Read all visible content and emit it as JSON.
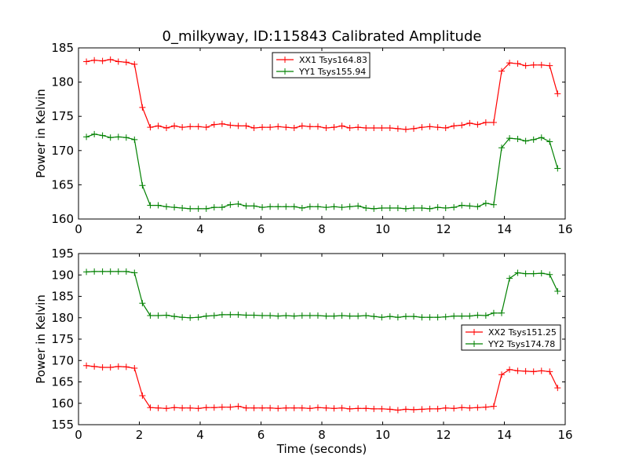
{
  "title": "0_milkyway, ID:115843 Calibrated Amplitude",
  "chart_data": [
    {
      "type": "line",
      "xlabel": "",
      "ylabel": "Power in Kelvin",
      "xlim": [
        0,
        16
      ],
      "ylim": [
        160,
        185
      ],
      "xticks": [
        0,
        2,
        4,
        6,
        8,
        10,
        12,
        14,
        16
      ],
      "yticks": [
        160,
        165,
        170,
        175,
        180,
        185
      ],
      "grid": false,
      "legend_position": "top-center",
      "x": [
        0.26,
        0.52,
        0.79,
        1.05,
        1.31,
        1.57,
        1.84,
        2.1,
        2.36,
        2.62,
        2.89,
        3.15,
        3.41,
        3.67,
        3.94,
        4.2,
        4.46,
        4.72,
        4.99,
        5.25,
        5.51,
        5.77,
        6.04,
        6.3,
        6.56,
        6.82,
        7.09,
        7.35,
        7.61,
        7.87,
        8.14,
        8.4,
        8.66,
        8.92,
        9.19,
        9.45,
        9.71,
        9.97,
        10.24,
        10.5,
        10.76,
        11.02,
        11.29,
        11.55,
        11.81,
        12.07,
        12.34,
        12.6,
        12.86,
        13.12,
        13.39,
        13.65,
        13.91,
        14.17,
        14.44,
        14.7,
        14.96,
        15.22,
        15.49,
        15.75
      ],
      "series": [
        {
          "name": "XX1 Tsys164.83",
          "color": "#ff0000",
          "values": [
            183.0,
            183.2,
            183.1,
            183.3,
            183.0,
            182.9,
            182.6,
            176.3,
            173.4,
            173.6,
            173.3,
            173.6,
            173.4,
            173.5,
            173.5,
            173.4,
            173.8,
            173.9,
            173.7,
            173.6,
            173.6,
            173.3,
            173.4,
            173.4,
            173.5,
            173.4,
            173.3,
            173.6,
            173.5,
            173.5,
            173.3,
            173.4,
            173.6,
            173.3,
            173.4,
            173.3,
            173.3,
            173.3,
            173.3,
            173.2,
            173.1,
            173.2,
            173.4,
            173.5,
            173.4,
            173.3,
            173.6,
            173.7,
            174.0,
            173.8,
            174.1,
            174.1,
            181.6,
            182.8,
            182.7,
            182.4,
            182.5,
            182.5,
            182.4,
            178.3
          ]
        },
        {
          "name": "YY1 Tsys155.94",
          "color": "#008000",
          "values": [
            172.0,
            172.4,
            172.2,
            171.9,
            172.0,
            171.9,
            171.6,
            164.9,
            162.0,
            162.0,
            161.8,
            161.7,
            161.6,
            161.5,
            161.5,
            161.5,
            161.7,
            161.7,
            162.1,
            162.2,
            161.9,
            161.9,
            161.7,
            161.8,
            161.8,
            161.8,
            161.8,
            161.6,
            161.8,
            161.8,
            161.7,
            161.8,
            161.7,
            161.8,
            161.9,
            161.6,
            161.5,
            161.6,
            161.6,
            161.6,
            161.5,
            161.6,
            161.6,
            161.5,
            161.7,
            161.6,
            161.7,
            162.0,
            161.9,
            161.8,
            162.3,
            162.1,
            170.4,
            171.8,
            171.7,
            171.4,
            171.6,
            171.9,
            171.3,
            167.4
          ]
        }
      ]
    },
    {
      "type": "line",
      "xlabel": "Time (seconds)",
      "ylabel": "Power in Kelvin",
      "xlim": [
        0,
        16
      ],
      "ylim": [
        155,
        195
      ],
      "xticks": [
        0,
        2,
        4,
        6,
        8,
        10,
        12,
        14,
        16
      ],
      "yticks": [
        155,
        160,
        165,
        170,
        175,
        180,
        185,
        190,
        195
      ],
      "grid": false,
      "legend_position": "right",
      "x": [
        0.26,
        0.52,
        0.79,
        1.05,
        1.31,
        1.57,
        1.84,
        2.1,
        2.36,
        2.62,
        2.89,
        3.15,
        3.41,
        3.67,
        3.94,
        4.2,
        4.46,
        4.72,
        4.99,
        5.25,
        5.51,
        5.77,
        6.04,
        6.3,
        6.56,
        6.82,
        7.09,
        7.35,
        7.61,
        7.87,
        8.14,
        8.4,
        8.66,
        8.92,
        9.19,
        9.45,
        9.71,
        9.97,
        10.24,
        10.5,
        10.76,
        11.02,
        11.29,
        11.55,
        11.81,
        12.07,
        12.34,
        12.6,
        12.86,
        13.12,
        13.39,
        13.65,
        13.91,
        14.17,
        14.44,
        14.7,
        14.96,
        15.22,
        15.49,
        15.75
      ],
      "series": [
        {
          "name": "XX2 Tsys151.25",
          "color": "#ff0000",
          "values": [
            168.8,
            168.6,
            168.4,
            168.4,
            168.6,
            168.5,
            168.2,
            161.8,
            159.0,
            158.9,
            158.8,
            159.0,
            158.9,
            158.9,
            158.8,
            159.0,
            159.0,
            159.1,
            159.1,
            159.3,
            158.9,
            158.9,
            158.9,
            158.9,
            158.8,
            158.9,
            158.9,
            158.9,
            158.8,
            159.0,
            158.9,
            158.8,
            158.9,
            158.7,
            158.8,
            158.8,
            158.7,
            158.7,
            158.6,
            158.4,
            158.6,
            158.5,
            158.6,
            158.7,
            158.7,
            158.9,
            158.8,
            159.0,
            158.9,
            159.0,
            159.1,
            159.3,
            166.7,
            167.9,
            167.6,
            167.5,
            167.4,
            167.6,
            167.4,
            163.6
          ]
        },
        {
          "name": "YY2 Tsys174.78",
          "color": "#008000",
          "values": [
            190.7,
            190.8,
            190.8,
            190.8,
            190.8,
            190.8,
            190.5,
            183.4,
            180.5,
            180.5,
            180.6,
            180.3,
            180.1,
            180.0,
            180.1,
            180.4,
            180.5,
            180.7,
            180.7,
            180.7,
            180.6,
            180.6,
            180.5,
            180.5,
            180.4,
            180.5,
            180.4,
            180.5,
            180.5,
            180.5,
            180.4,
            180.4,
            180.5,
            180.4,
            180.4,
            180.5,
            180.3,
            180.1,
            180.3,
            180.1,
            180.3,
            180.3,
            180.1,
            180.1,
            180.1,
            180.2,
            180.4,
            180.4,
            180.4,
            180.6,
            180.5,
            181.1,
            181.1,
            189.2,
            190.5,
            190.3,
            190.3,
            190.4,
            190.1,
            186.2
          ]
        }
      ]
    }
  ]
}
